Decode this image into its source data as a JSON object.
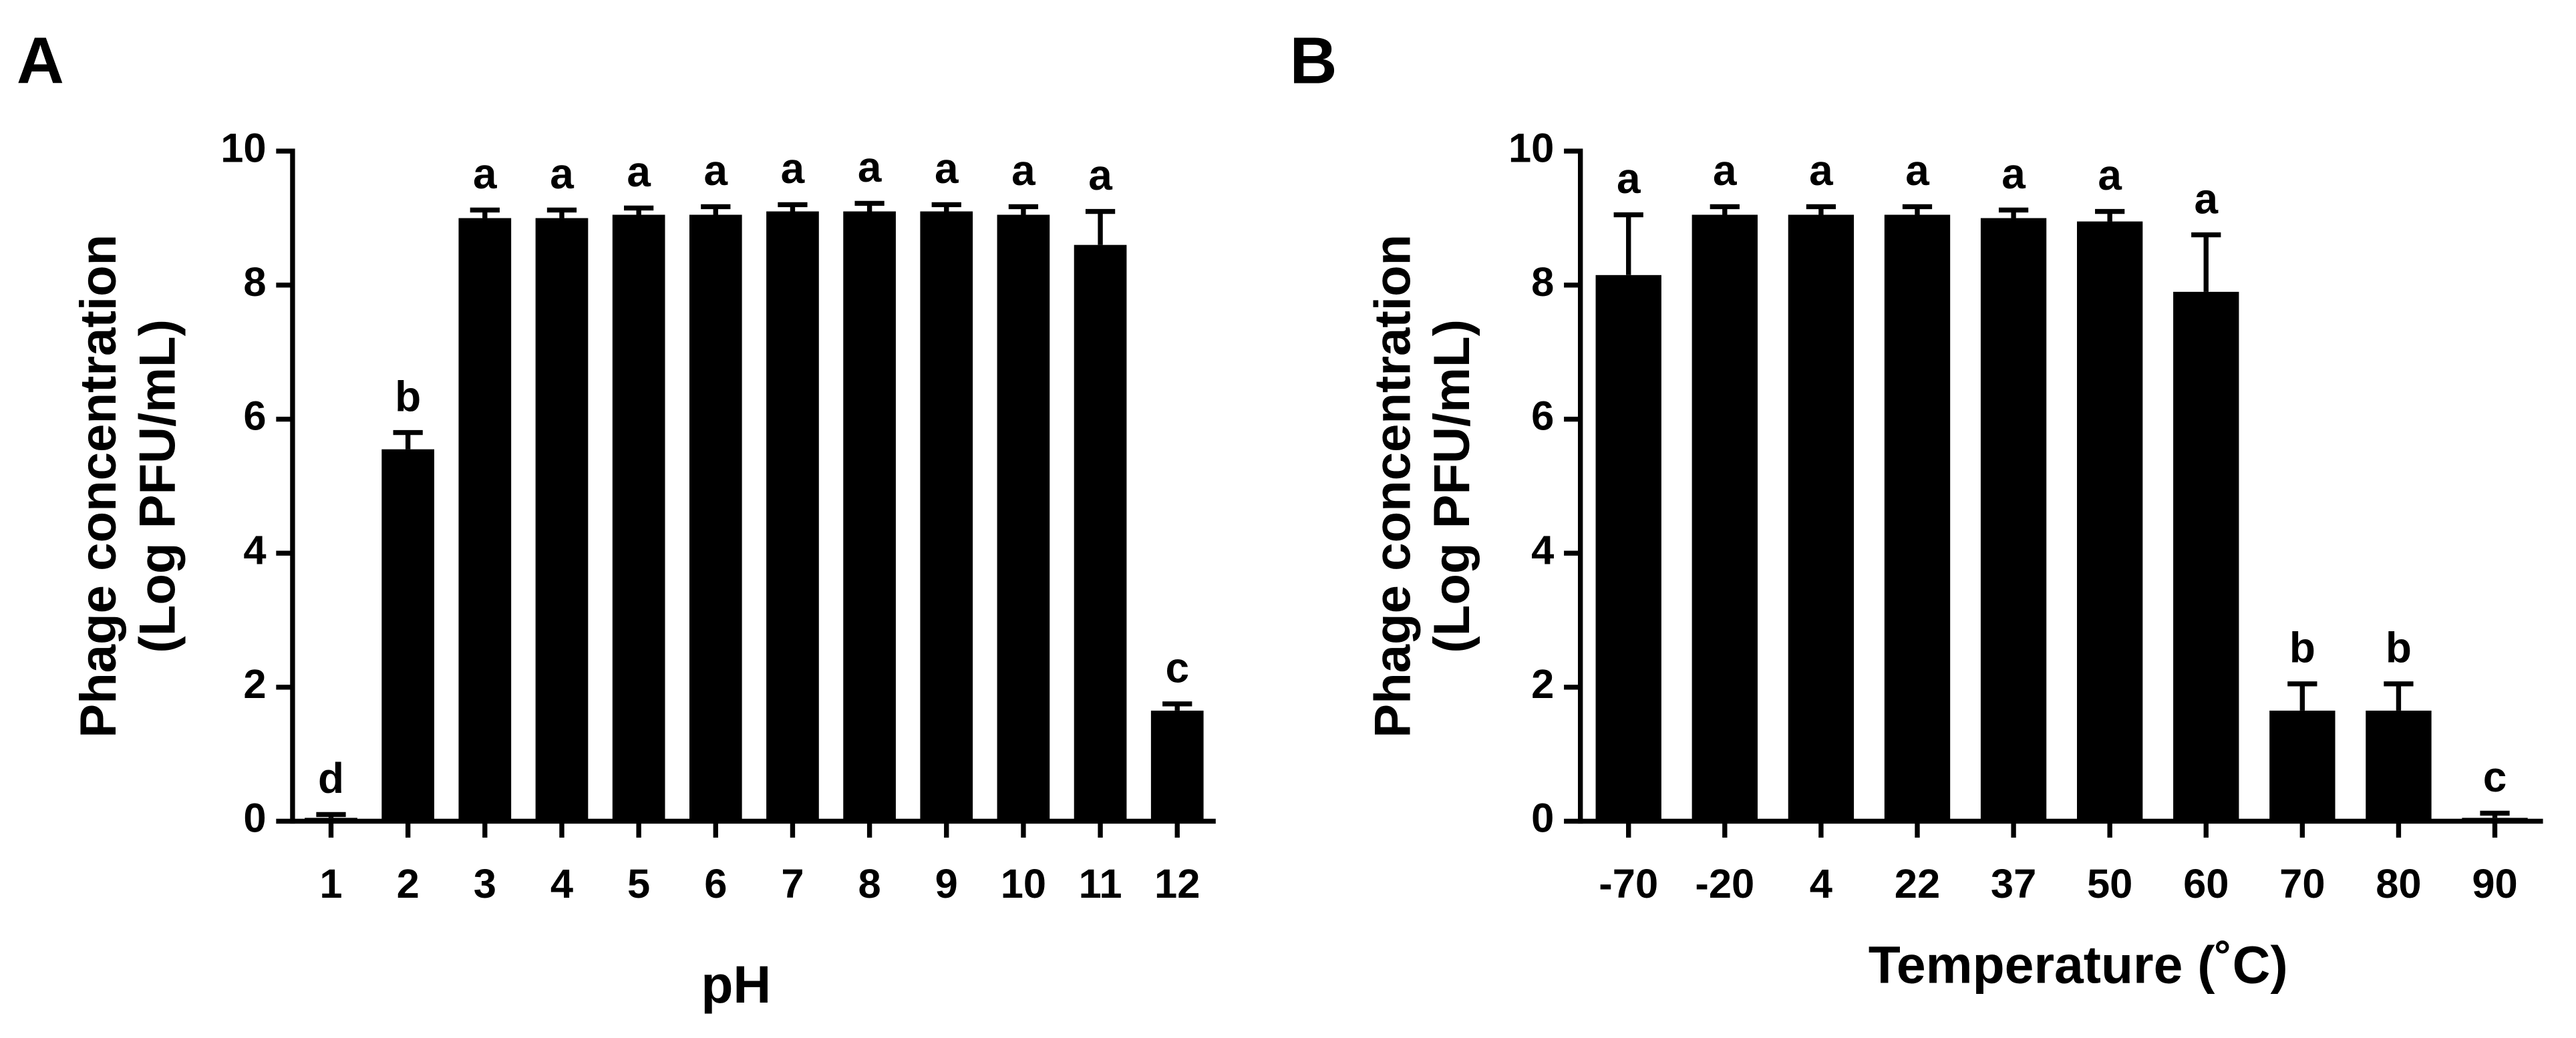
{
  "chart_data": [
    {
      "type": "bar",
      "panel": "A",
      "ylabel": [
        "Phage concentration",
        "(Log PFU/mL)"
      ],
      "xlabel": "pH",
      "categories": [
        "1",
        "2",
        "3",
        "4",
        "5",
        "6",
        "7",
        "8",
        "9",
        "10",
        "11",
        "12"
      ],
      "values": [
        0.05,
        5.55,
        9.0,
        9.0,
        9.05,
        9.05,
        9.1,
        9.1,
        9.1,
        9.05,
        8.6,
        1.65
      ],
      "errors": [
        0.05,
        0.25,
        0.12,
        0.12,
        0.1,
        0.12,
        0.1,
        0.12,
        0.1,
        0.12,
        0.5,
        0.1
      ],
      "annotations": [
        "d",
        "b",
        "a",
        "a",
        "a",
        "a",
        "a",
        "a",
        "a",
        "a",
        "a",
        "c"
      ],
      "color": "#000000",
      "ylim": [
        0,
        10
      ],
      "yticks": [
        0,
        2,
        4,
        6,
        8,
        10
      ]
    },
    {
      "type": "bar",
      "panel": "B",
      "ylabel": [
        "Phage concentration",
        "(Log PFU/mL)"
      ],
      "xlabel": "Temperature (˚C)",
      "categories": [
        "-70",
        "-20",
        "4",
        "22",
        "37",
        "50",
        "60",
        "70",
        "80",
        "90"
      ],
      "values": [
        8.15,
        9.05,
        9.05,
        9.05,
        9.0,
        8.95,
        7.9,
        1.65,
        1.65,
        0.05
      ],
      "errors": [
        0.9,
        0.12,
        0.12,
        0.12,
        0.12,
        0.15,
        0.85,
        0.4,
        0.4,
        0.07
      ],
      "annotations": [
        "a",
        "a",
        "a",
        "a",
        "a",
        "a",
        "a",
        "b",
        "b",
        "c"
      ],
      "color": "#000000",
      "ylim": [
        0,
        10
      ],
      "yticks": [
        0,
        2,
        4,
        6,
        8,
        10
      ]
    }
  ]
}
